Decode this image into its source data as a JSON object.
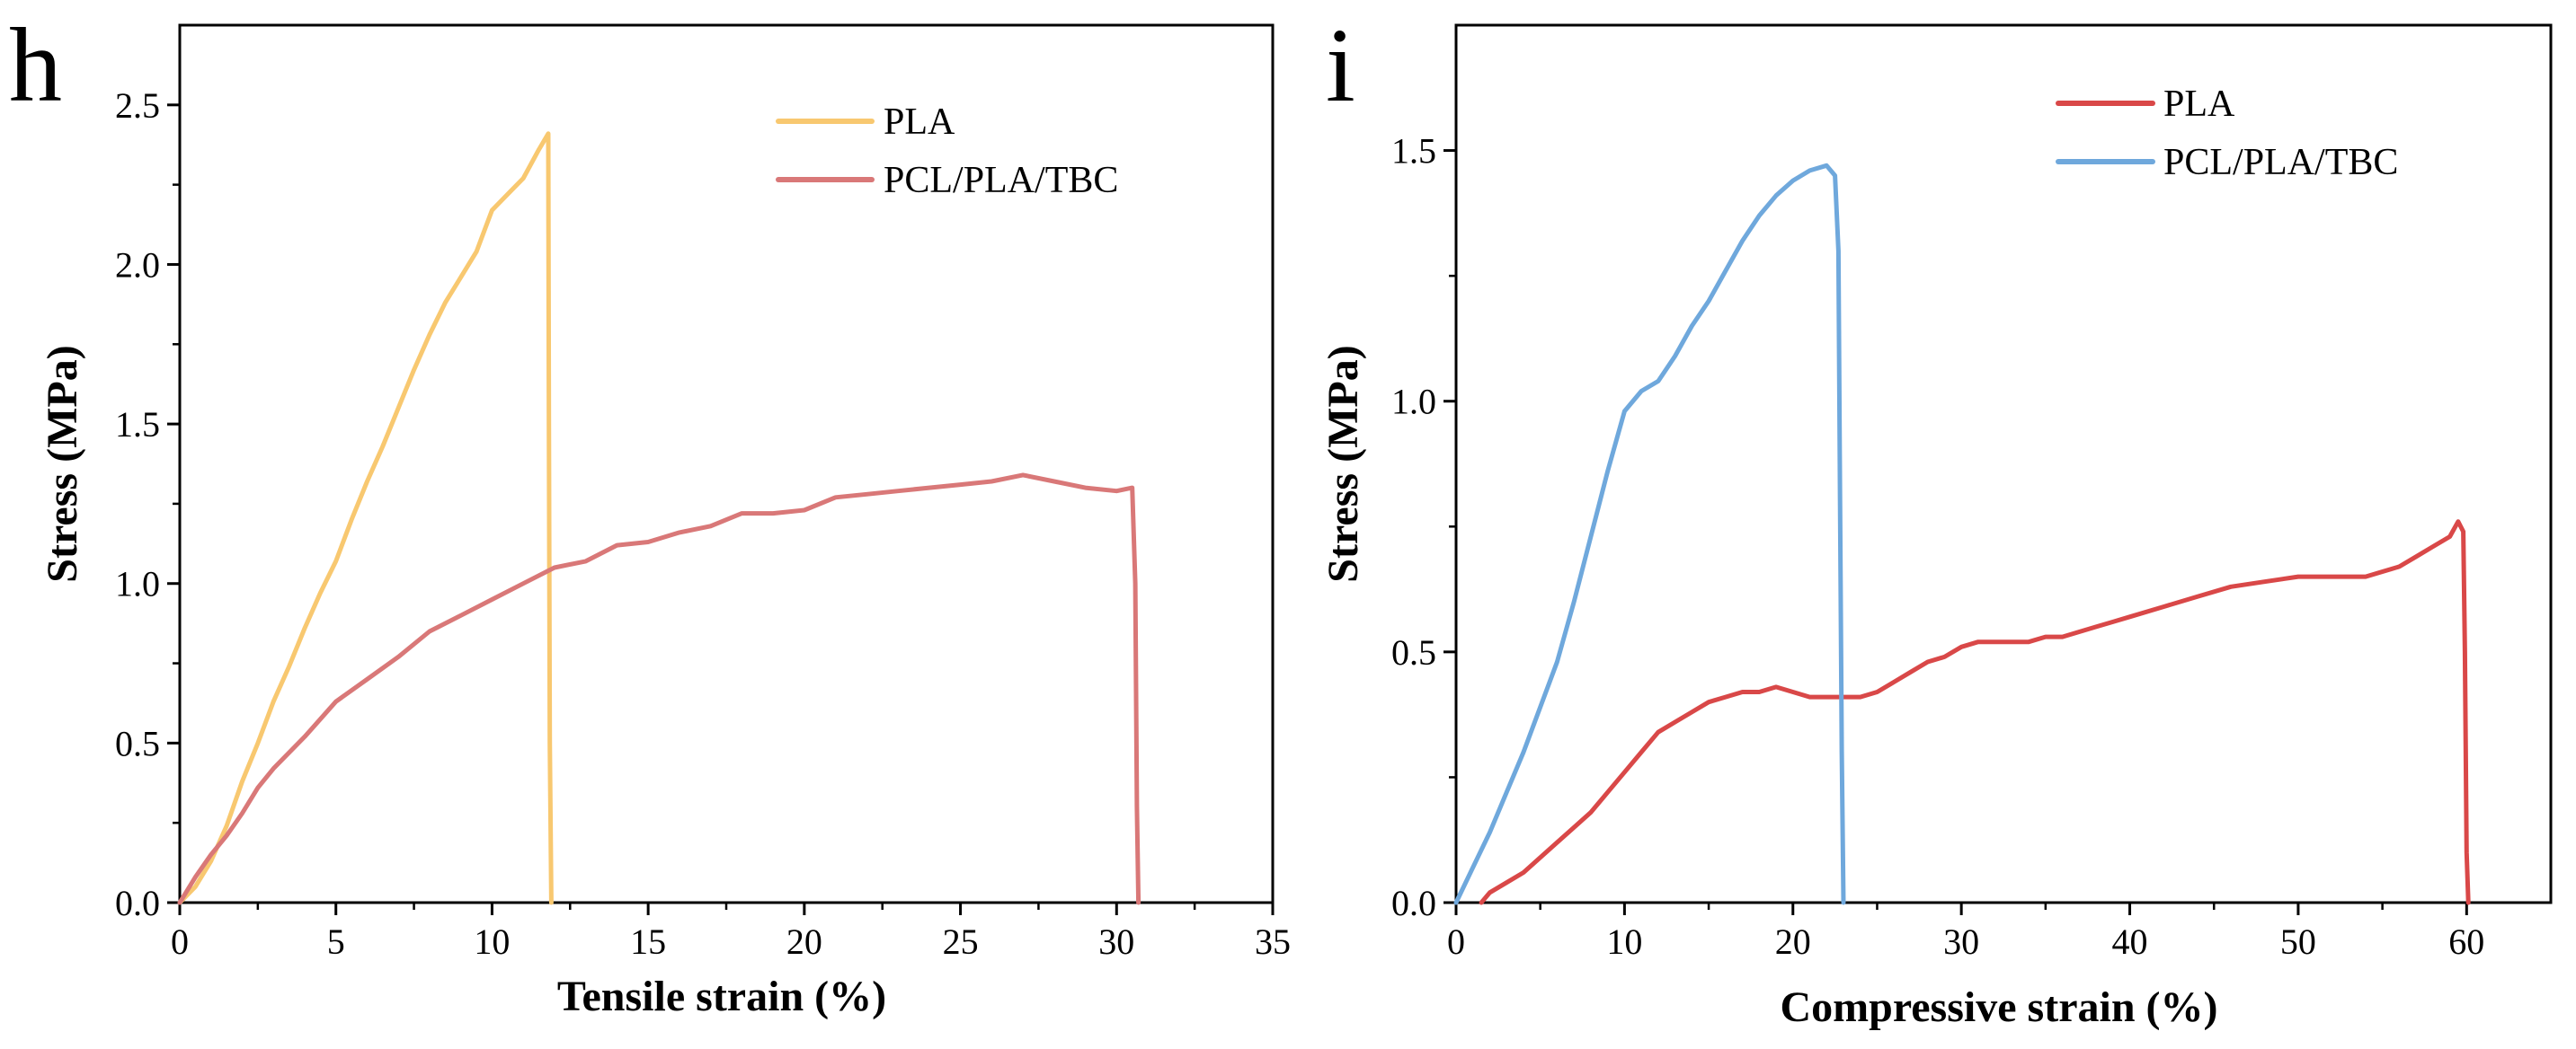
{
  "chart_data": [
    {
      "type": "line",
      "panel": "h",
      "title": "",
      "xlabel": "Tensile strain (%)",
      "ylabel": "Stress (MPa)",
      "xlim": [
        0,
        35
      ],
      "ylim": [
        0,
        2.75
      ],
      "xticks": [
        0,
        5,
        10,
        15,
        20,
        25,
        30,
        35
      ],
      "xtick_labels": [
        "0",
        "5",
        "10",
        "15",
        "20",
        "25",
        "30",
        "35"
      ],
      "yticks": [
        0,
        0.5,
        1.0,
        1.5,
        2.0,
        2.5
      ],
      "ytick_labels": [
        "0.0",
        "0.5",
        "1.0",
        "1.5",
        "2.0",
        "2.5"
      ],
      "grid": false,
      "legend_position": "top-right",
      "series": [
        {
          "name": "PLA",
          "color": "#F8C870",
          "x": [
            0,
            0.5,
            1,
            1.5,
            2,
            2.5,
            3,
            3.5,
            4,
            4.5,
            5,
            5.5,
            6,
            6.5,
            7,
            7.5,
            8,
            8.5,
            9,
            9.5,
            10,
            10.5,
            11,
            11.5,
            11.8,
            11.82,
            11.85,
            11.9
          ],
          "y": [
            0,
            0.05,
            0.13,
            0.24,
            0.38,
            0.5,
            0.63,
            0.74,
            0.86,
            0.97,
            1.07,
            1.2,
            1.32,
            1.43,
            1.55,
            1.67,
            1.78,
            1.88,
            1.96,
            2.04,
            2.17,
            2.22,
            2.27,
            2.36,
            2.41,
            1.5,
            0.5,
            0
          ]
        },
        {
          "name": "PCL/PLA/TBC",
          "color": "#D97878",
          "x": [
            0,
            0.5,
            1,
            1.5,
            2,
            2.5,
            3,
            4,
            5,
            6,
            7,
            8,
            9,
            10,
            11,
            12,
            13,
            14,
            15,
            16,
            17,
            18,
            19,
            20,
            21,
            22,
            23,
            24,
            25,
            26,
            27,
            28,
            29,
            30,
            30.5,
            30.6,
            30.65,
            30.7
          ],
          "y": [
            0,
            0.08,
            0.15,
            0.21,
            0.28,
            0.36,
            0.42,
            0.52,
            0.63,
            0.7,
            0.77,
            0.85,
            0.9,
            0.95,
            1.0,
            1.05,
            1.07,
            1.12,
            1.13,
            1.16,
            1.18,
            1.22,
            1.22,
            1.23,
            1.27,
            1.28,
            1.29,
            1.3,
            1.31,
            1.32,
            1.34,
            1.32,
            1.3,
            1.29,
            1.3,
            1.0,
            0.3,
            0
          ]
        }
      ]
    },
    {
      "type": "line",
      "panel": "i",
      "title": "",
      "xlabel": "Compressive strain (%)",
      "ylabel": "Stress (MPa)",
      "xlim": [
        0,
        65
      ],
      "ylim": [
        0,
        1.75
      ],
      "xticks": [
        0,
        10,
        20,
        30,
        40,
        50,
        60
      ],
      "xtick_labels": [
        "0",
        "10",
        "20",
        "30",
        "40",
        "50",
        "60"
      ],
      "yticks": [
        0,
        0.5,
        1.0,
        1.5
      ],
      "ytick_labels": [
        "0.0",
        "0.5",
        "1.0",
        "1.5"
      ],
      "grid": false,
      "legend_position": "top-right",
      "series": [
        {
          "name": "PLA",
          "color": "#D94848",
          "x": [
            1.5,
            2,
            3,
            4,
            5,
            6,
            7,
            8,
            9,
            10,
            11,
            12,
            13,
            14,
            15,
            16,
            17,
            18,
            19,
            20,
            21,
            22,
            23,
            24,
            25,
            26,
            27,
            28,
            29,
            30,
            31,
            32,
            33,
            34,
            35,
            36,
            37,
            38,
            39,
            40,
            42,
            44,
            46,
            48,
            50,
            52,
            54,
            56,
            57,
            58,
            59,
            59.5,
            59.8,
            59.9,
            60,
            60.1
          ],
          "y": [
            0,
            0.02,
            0.04,
            0.06,
            0.09,
            0.12,
            0.15,
            0.18,
            0.22,
            0.26,
            0.3,
            0.34,
            0.36,
            0.38,
            0.4,
            0.41,
            0.42,
            0.42,
            0.43,
            0.42,
            0.41,
            0.41,
            0.41,
            0.41,
            0.42,
            0.44,
            0.46,
            0.48,
            0.49,
            0.51,
            0.52,
            0.52,
            0.52,
            0.52,
            0.53,
            0.53,
            0.54,
            0.55,
            0.56,
            0.57,
            0.59,
            0.61,
            0.63,
            0.64,
            0.65,
            0.65,
            0.65,
            0.67,
            0.69,
            0.71,
            0.73,
            0.76,
            0.74,
            0.5,
            0.1,
            0
          ]
        },
        {
          "name": "PCL/PLA/TBC",
          "color": "#6FA8DC",
          "x": [
            0,
            1,
            2,
            3,
            4,
            5,
            6,
            7,
            8,
            9,
            10,
            11,
            12,
            13,
            14,
            15,
            16,
            17,
            18,
            19,
            20,
            21,
            22,
            22.5,
            22.7,
            22.8,
            22.9,
            23
          ],
          "y": [
            0,
            0.07,
            0.14,
            0.22,
            0.3,
            0.39,
            0.48,
            0.6,
            0.73,
            0.86,
            0.98,
            1.02,
            1.04,
            1.09,
            1.15,
            1.2,
            1.26,
            1.32,
            1.37,
            1.41,
            1.44,
            1.46,
            1.47,
            1.45,
            1.3,
            0.8,
            0.3,
            0
          ]
        }
      ]
    }
  ]
}
